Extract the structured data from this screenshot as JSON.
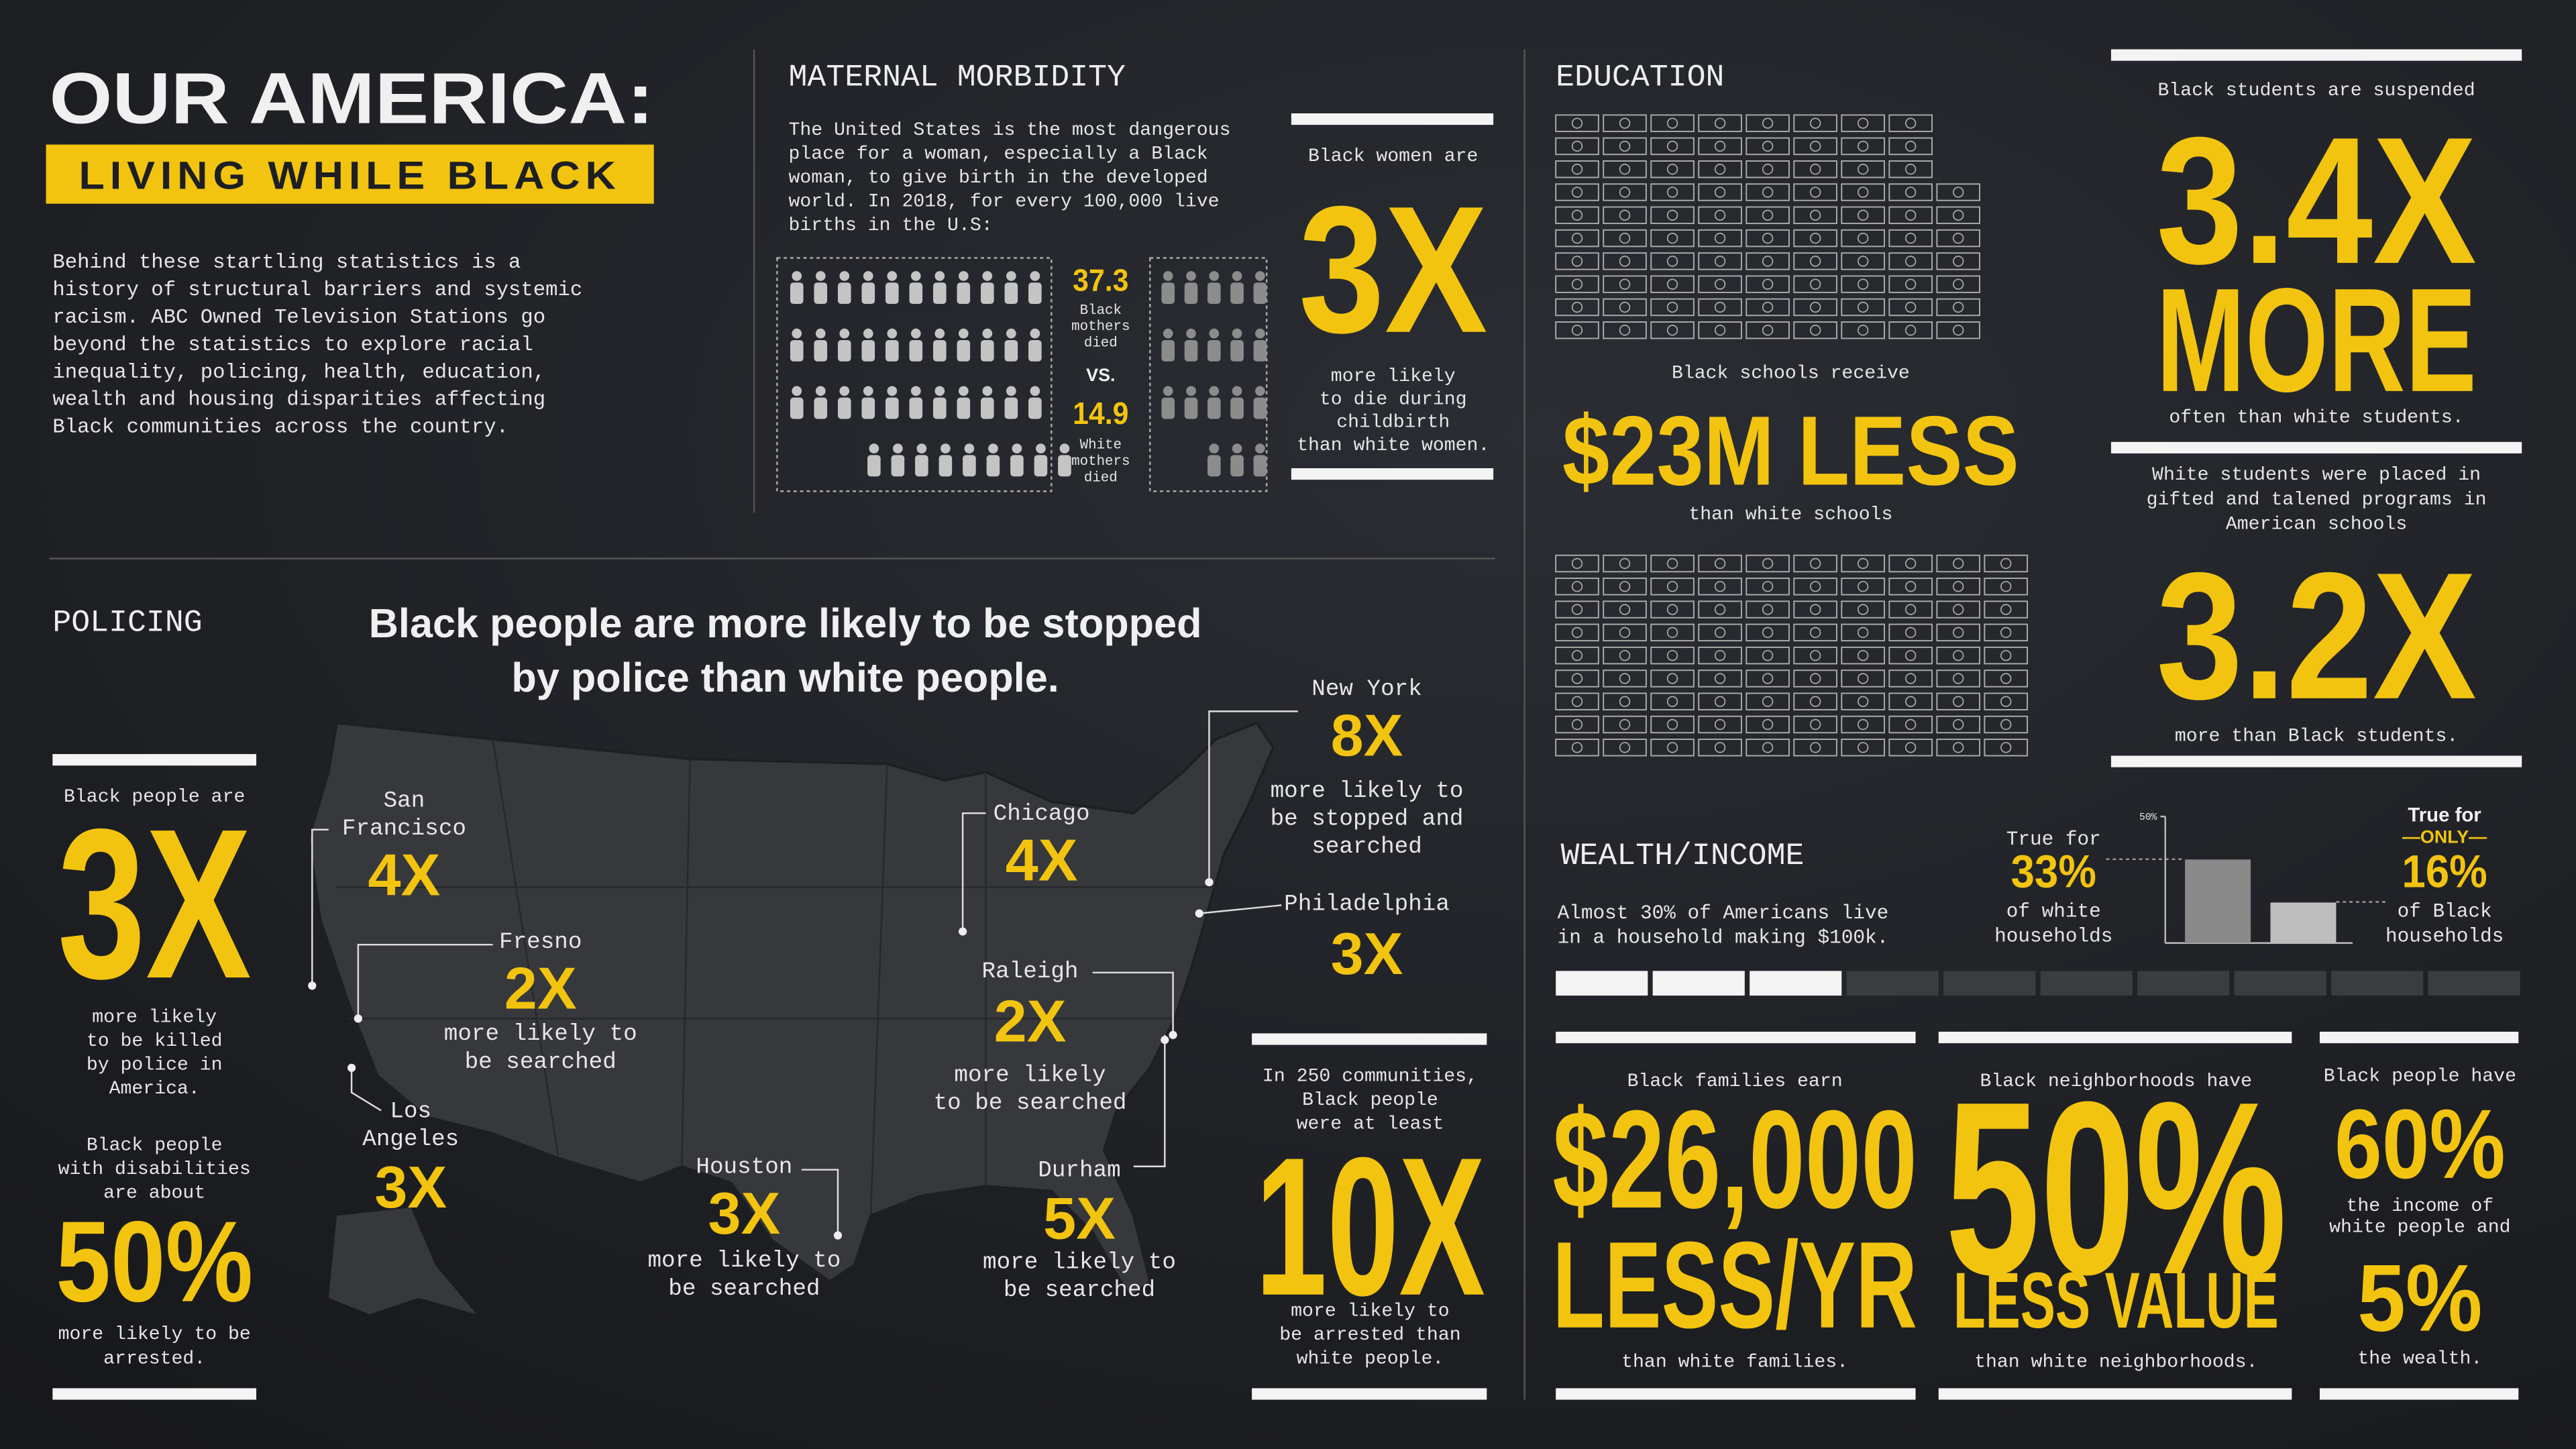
{
  "header": {
    "title": "OUR AMERICA:",
    "subtitle": "LIVING WHILE BLACK",
    "intro": [
      "Behind these startling statistics is a",
      "history of structural barriers and systemic",
      "racism. ABC Owned Television Stations go",
      "beyond the statistics to explore racial",
      "inequality, policing, health, education,",
      "wealth and housing disparities affecting",
      "Black communities across the country."
    ]
  },
  "maternal": {
    "heading": "MATERNAL MORBIDITY",
    "text": [
      "The United States is the most dangerous",
      "place for a woman, especially a Black",
      "woman, to give birth in the developed",
      "world. In 2018, for every 100,000 live",
      "births in the U.S:"
    ],
    "black_rate": "37.3",
    "black_label": [
      "Black",
      "mothers",
      "died"
    ],
    "vs": "VS.",
    "white_rate": "14.9",
    "white_label": [
      "White",
      "mothers",
      "died"
    ],
    "stat_intro": "Black women are",
    "stat": "3X",
    "stat_text": [
      "more likely",
      "to die during",
      "childbirth",
      "than white women."
    ]
  },
  "education": {
    "heading": "EDUCATION",
    "funding_intro": "Black schools receive",
    "funding": "$23M LESS",
    "funding_text": "than white schools",
    "suspend_intro": "Black students are suspended",
    "suspend": "3.4X",
    "suspend_more": "MORE",
    "suspend_text": "often than white students.",
    "gifted_intro": [
      "White students were placed in",
      "gifted and talened programs in",
      "American schools"
    ],
    "gifted": "3.2X",
    "gifted_text": "more than Black students."
  },
  "wealth": {
    "heading": "WEALTH/INCOME",
    "intro": [
      "Almost 30% of Americans live",
      "in a household making $100k."
    ],
    "white_pre": "True for",
    "white_label": [
      "of white",
      "households"
    ],
    "black_pre": "True for",
    "black_only": "—ONLY—",
    "black_label": [
      "of Black",
      "households"
    ],
    "chart": {
      "type": "bar",
      "ylim": [
        0,
        50
      ],
      "yticks": [
        {
          "value": 50,
          "label": "50%"
        }
      ],
      "values": [
        33,
        16
      ],
      "value_labels": [
        "33%",
        "16%"
      ],
      "colors": [
        "#8a8a8a",
        "#bdbdbd"
      ]
    },
    "earn_intro": "Black families earn",
    "earn": "$26,000",
    "earn_unit": "LESS/YR",
    "earn_text": "than white families.",
    "home_intro": "Black neighborhoods have",
    "home": "50%",
    "home_unit": "LESS VALUE",
    "home_text": "than white neighborhoods.",
    "income_intro": "Black people have",
    "income": "60%",
    "income_text": [
      "the income of",
      "white people and"
    ],
    "wealth": "5%",
    "wealth_text": "the wealth."
  },
  "policing": {
    "heading": "POLICING",
    "headline": [
      "Black people are more likely to be stopped",
      "by police than white people."
    ],
    "killed_intro": "Black people are",
    "killed": "3X",
    "killed_text": [
      "more likely",
      "to be killed",
      "by police in",
      "America."
    ],
    "disab_intro": [
      "Black people",
      "with disabilities",
      "are about"
    ],
    "disab": "50%",
    "disab_text": [
      "more likely to be",
      "arrested."
    ],
    "arrest_intro": [
      "In 250 communities,",
      "Black people",
      "were at least"
    ],
    "arrest": "10X",
    "arrest_text": [
      "more likely to",
      "be arrested than",
      "white people."
    ],
    "cities": [
      {
        "name": [
          "San",
          "Francisco"
        ],
        "value": "4X"
      },
      {
        "name": [
          "Fresno"
        ],
        "value": "2X",
        "note": [
          "more likely to",
          "be searched"
        ]
      },
      {
        "name": [
          "Los",
          "Angeles"
        ],
        "value": "3X"
      },
      {
        "name": [
          "Chicago"
        ],
        "value": "4X"
      },
      {
        "name": [
          "New York"
        ],
        "value": "8X",
        "note": [
          "more likely to",
          "be stopped and",
          "searched"
        ]
      },
      {
        "name": [
          "Philadelphia"
        ],
        "value": "3X"
      },
      {
        "name": [
          "Raleigh"
        ],
        "value": "2X",
        "note": [
          "more likely",
          "to be searched"
        ]
      },
      {
        "name": [
          "Houston"
        ],
        "value": "3X",
        "note": [
          "more likely to",
          "be searched"
        ]
      },
      {
        "name": [
          "Durham"
        ],
        "value": "5X",
        "note": [
          "more likely to",
          "be searched"
        ]
      }
    ]
  }
}
